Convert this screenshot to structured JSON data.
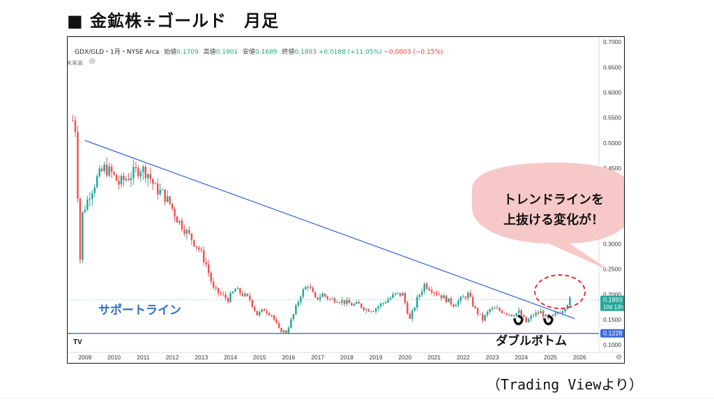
{
  "heading": "■ 金鉱株÷ゴールド　月足",
  "caption": "（Trading Viewより）",
  "info": {
    "symbol": "GDX/GLD・1月・NYSE Arca",
    "open_label": "始値",
    "open": "0.1709",
    "high_label": "高値",
    "high": "0.1901",
    "low_label": "安値",
    "low": "0.1689",
    "close_label": "終値",
    "close": "0.1893",
    "change": "+0.0188 (+11.05%)",
    "change2": "−0.0003 (−0.15%)",
    "sub": "未来高"
  },
  "price_tag": {
    "value": "0.1893",
    "countdown": "10d 13h"
  },
  "support_tag": {
    "value": "0.1228"
  },
  "callout": {
    "line1": "トレンドラインを",
    "line2": "上抜ける変化が！"
  },
  "annotations": {
    "support": "サポートライン",
    "double_bottom": "ダブルボトム"
  },
  "colors": {
    "up": "#26a69a",
    "down": "#ef5350",
    "trend": "#3d6bdb",
    "support_line": "#3d6bdb",
    "callout_fill": "#f7c8c8",
    "ring": "#e0312f",
    "support_text": "#2f6fc6"
  },
  "chart_data": {
    "type": "candlestick",
    "title": "",
    "x_axis": {
      "type": "date",
      "range": [
        "2008-07",
        "2026-09"
      ],
      "ticks": [
        "2009",
        "2010",
        "2011",
        "2012",
        "2013",
        "2014",
        "2015",
        "2016",
        "2017",
        "2018",
        "2019",
        "2020",
        "2021",
        "2022",
        "2023",
        "2024",
        "2025",
        "2026"
      ]
    },
    "y_axis": {
      "position": "right",
      "range": [
        0.085,
        0.71
      ],
      "ticks": [
        "0.1000",
        "0.1500",
        "0.2000",
        "0.2500",
        "0.3000",
        "0.3500",
        "0.4000",
        "0.4500",
        "0.5000",
        "0.5500",
        "0.6000",
        "0.6500",
        "0.7000"
      ]
    },
    "series_points": [
      [
        "2008-08",
        0.545
      ],
      [
        "2008-09",
        0.53
      ],
      [
        "2008-10",
        0.4
      ],
      [
        "2008-11",
        0.27
      ],
      [
        "2008-12",
        0.36
      ],
      [
        "2009-03",
        0.4
      ],
      [
        "2009-06",
        0.43
      ],
      [
        "2009-09",
        0.45
      ],
      [
        "2009-12",
        0.44
      ],
      [
        "2010-03",
        0.42
      ],
      [
        "2010-06",
        0.43
      ],
      [
        "2010-09",
        0.44
      ],
      [
        "2010-12",
        0.45
      ],
      [
        "2011-03",
        0.44
      ],
      [
        "2011-06",
        0.41
      ],
      [
        "2011-09",
        0.4
      ],
      [
        "2011-12",
        0.38
      ],
      [
        "2012-03",
        0.35
      ],
      [
        "2012-06",
        0.33
      ],
      [
        "2012-09",
        0.31
      ],
      [
        "2012-12",
        0.29
      ],
      [
        "2013-03",
        0.26
      ],
      [
        "2013-06",
        0.21
      ],
      [
        "2013-09",
        0.2
      ],
      [
        "2013-12",
        0.19
      ],
      [
        "2014-03",
        0.21
      ],
      [
        "2014-06",
        0.2
      ],
      [
        "2014-09",
        0.19
      ],
      [
        "2014-12",
        0.16
      ],
      [
        "2015-03",
        0.17
      ],
      [
        "2015-06",
        0.16
      ],
      [
        "2015-09",
        0.13
      ],
      [
        "2015-12",
        0.125
      ],
      [
        "2016-03",
        0.16
      ],
      [
        "2016-06",
        0.2
      ],
      [
        "2016-09",
        0.22
      ],
      [
        "2016-12",
        0.19
      ],
      [
        "2017-03",
        0.2
      ],
      [
        "2017-06",
        0.19
      ],
      [
        "2017-09",
        0.19
      ],
      [
        "2017-12",
        0.185
      ],
      [
        "2018-03",
        0.18
      ],
      [
        "2018-06",
        0.18
      ],
      [
        "2018-09",
        0.17
      ],
      [
        "2018-12",
        0.17
      ],
      [
        "2019-03",
        0.18
      ],
      [
        "2019-06",
        0.19
      ],
      [
        "2019-09",
        0.2
      ],
      [
        "2019-12",
        0.2
      ],
      [
        "2020-03",
        0.15
      ],
      [
        "2020-06",
        0.19
      ],
      [
        "2020-09",
        0.22
      ],
      [
        "2020-12",
        0.21
      ],
      [
        "2021-03",
        0.2
      ],
      [
        "2021-06",
        0.19
      ],
      [
        "2021-09",
        0.18
      ],
      [
        "2021-12",
        0.19
      ],
      [
        "2022-03",
        0.2
      ],
      [
        "2022-06",
        0.17
      ],
      [
        "2022-09",
        0.15
      ],
      [
        "2022-12",
        0.17
      ],
      [
        "2023-03",
        0.17
      ],
      [
        "2023-06",
        0.165
      ],
      [
        "2023-09",
        0.16
      ],
      [
        "2023-12",
        0.165
      ],
      [
        "2024-03",
        0.145
      ],
      [
        "2024-06",
        0.16
      ],
      [
        "2024-09",
        0.165
      ],
      [
        "2024-12",
        0.15
      ],
      [
        "2025-03",
        0.16
      ],
      [
        "2025-06",
        0.17
      ],
      [
        "2025-09",
        0.1893
      ]
    ],
    "trend_line": {
      "from": [
        "2009-01",
        0.505
      ],
      "to": [
        "2025-11",
        0.152
      ]
    },
    "support_line": {
      "value": 0.1228
    },
    "grid": false,
    "legend": "none"
  }
}
